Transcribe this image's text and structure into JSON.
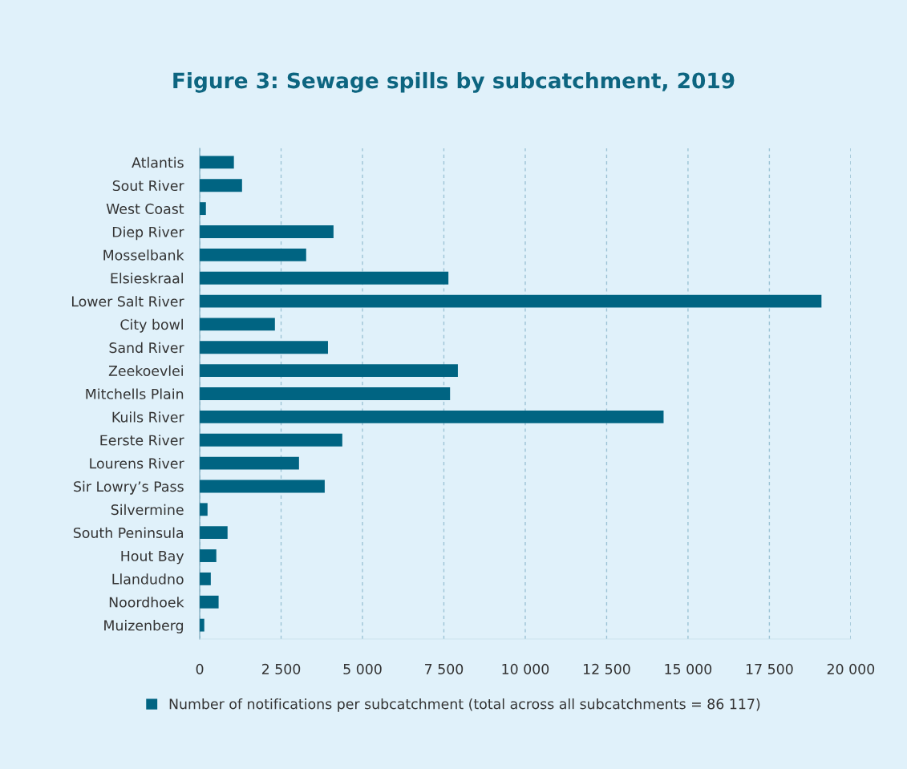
{
  "chart_data": {
    "type": "bar",
    "orientation": "horizontal",
    "title": "Figure 3: Sewage spills by subcatchment, 2019",
    "categories": [
      "Atlantis",
      "Sout River",
      "West Coast",
      "Diep River",
      "Mosselbank",
      "Elsieskraal",
      "Lower Salt River",
      "City bowl",
      "Sand River",
      "Zeekoevlei",
      "Mitchells Plain",
      "Kuils River",
      "Eerste River",
      "Lourens River",
      "Sir Lowry’s Pass",
      "Silvermine",
      "South Peninsula",
      "Hout Bay",
      "Llandudno",
      "Noordhoek",
      "Muizenberg"
    ],
    "series": [
      {
        "name": "Number of notifications per subcatchment (total across all subcatchments = 86 117)",
        "color": "#006482",
        "values": [
          1050,
          1300,
          190,
          4110,
          3270,
          7640,
          19100,
          2310,
          3940,
          7930,
          7690,
          14250,
          4380,
          3050,
          3840,
          240,
          855,
          510,
          340,
          580,
          140
        ]
      }
    ],
    "xlim": [
      0,
      20000
    ],
    "xticks": [
      0,
      {
        "value": 2500,
        "label": "2 500"
      },
      {
        "value": 5000,
        "label": "5 000"
      },
      {
        "value": 7500,
        "label": "7 500"
      },
      {
        "value": 10000,
        "label": "10 000"
      },
      {
        "value": 12500,
        "label": "12 500"
      },
      {
        "value": 15000,
        "label": "15 000"
      },
      {
        "value": 17500,
        "label": "17 500"
      },
      {
        "value": 20000,
        "label": "20 000"
      }
    ],
    "grid": "x",
    "legend": "bottom"
  }
}
